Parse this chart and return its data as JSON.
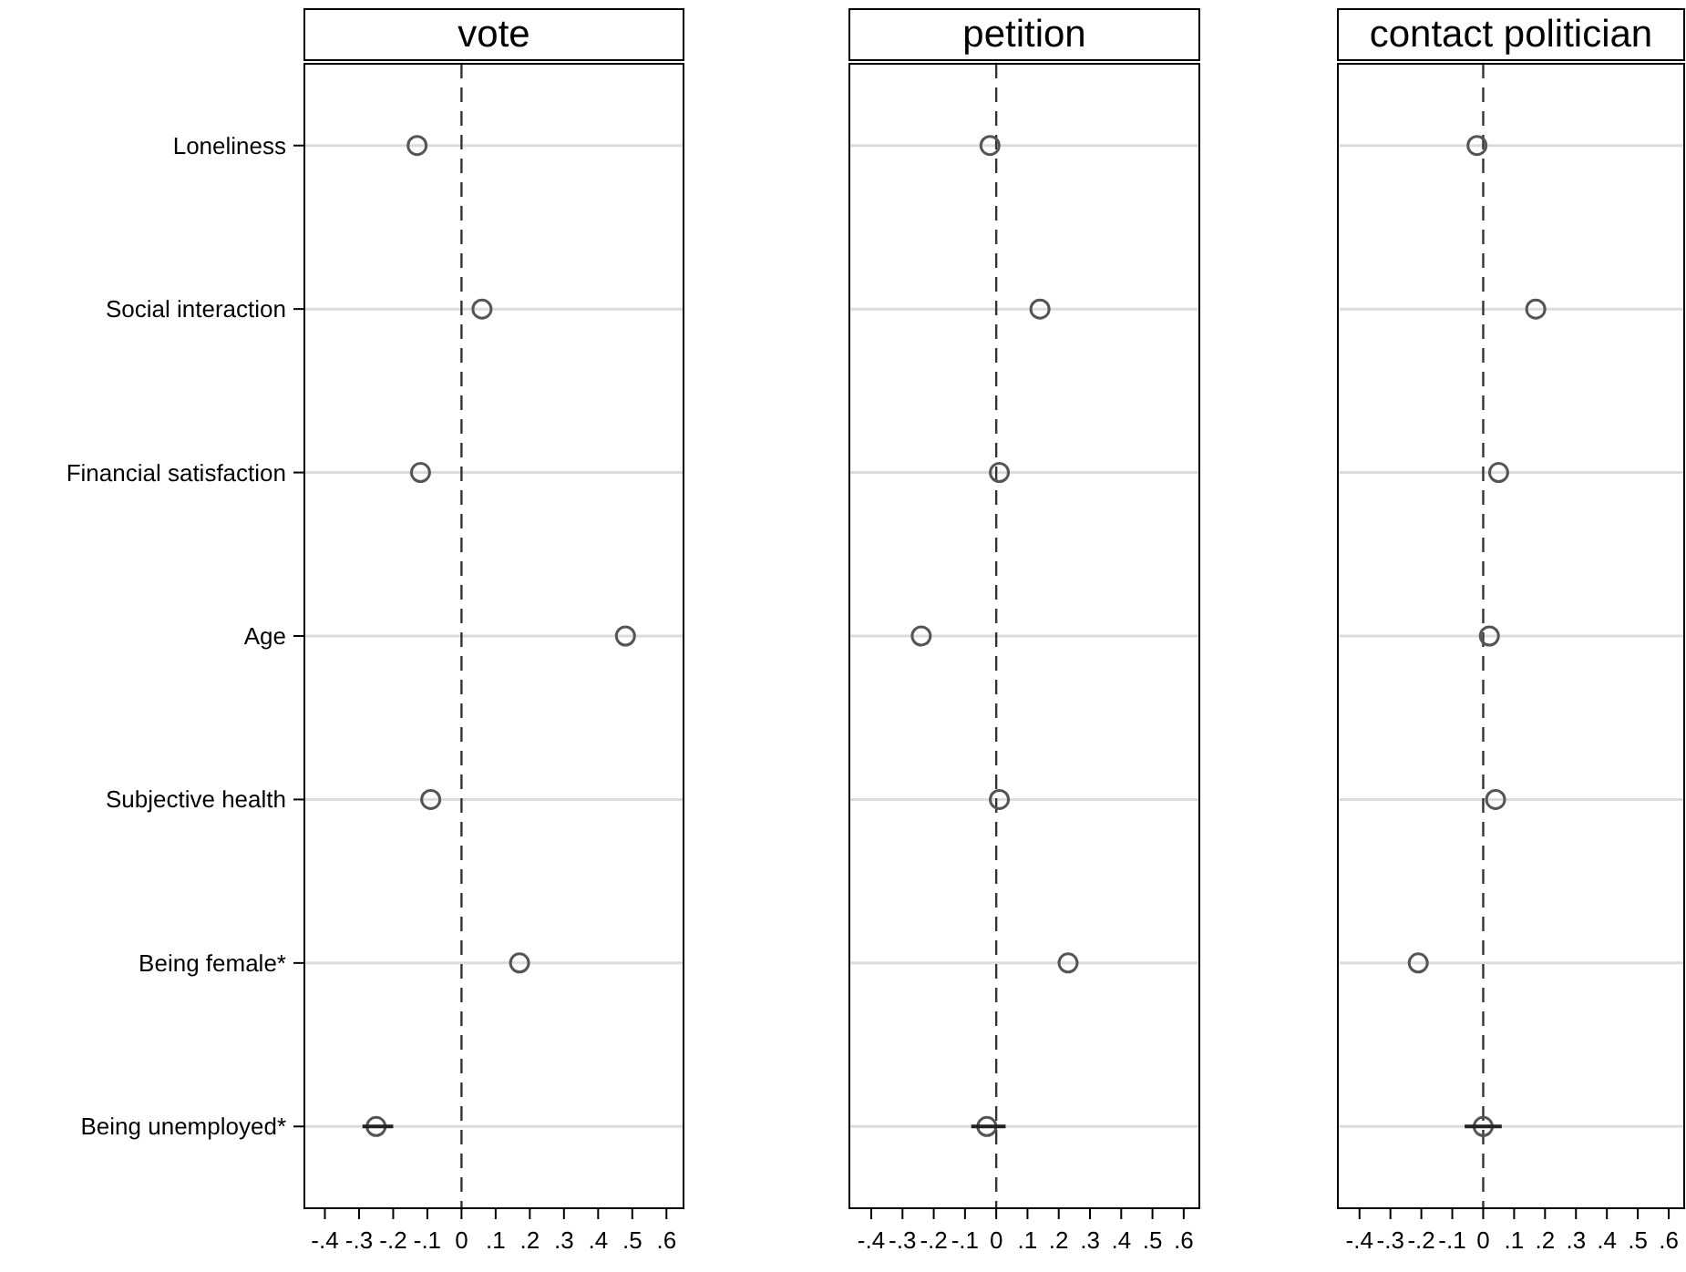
{
  "chart_data": [
    {
      "type": "scatter",
      "orientation": "horizontal",
      "title": "vote",
      "categories": [
        "Loneliness",
        "Social interaction",
        "Financial satisfaction",
        "Age",
        "Subjective health",
        "Being female*",
        "Being unemployed*"
      ],
      "values": [
        -0.13,
        0.06,
        -0.12,
        0.48,
        -0.09,
        0.17,
        -0.25
      ],
      "errors": [
        null,
        null,
        null,
        null,
        null,
        null,
        [
          -0.29,
          -0.2
        ]
      ],
      "color": "#555555",
      "marker": "circle",
      "grid": "y",
      "xlim": [
        -0.46,
        0.65
      ],
      "xticks": [
        {
          "value": -0.4,
          "label": "-.4"
        },
        {
          "value": -0.3,
          "label": "-.3"
        },
        {
          "value": -0.2,
          "label": "-.2"
        },
        {
          "value": -0.1,
          "label": "-.1"
        },
        {
          "value": 0,
          "label": "0"
        },
        {
          "value": 0.1,
          "label": ".1"
        },
        {
          "value": 0.2,
          "label": ".2"
        },
        {
          "value": 0.3,
          "label": ".3"
        },
        {
          "value": 0.4,
          "label": ".4"
        },
        {
          "value": 0.5,
          "label": ".5"
        },
        {
          "value": 0.6,
          "label": ".6"
        }
      ],
      "ref_lines": [
        {
          "axis": "x",
          "value": 0,
          "line_style": "dashed"
        }
      ]
    },
    {
      "type": "scatter",
      "orientation": "horizontal",
      "title": "petition",
      "categories": [
        null,
        null,
        null,
        null,
        null,
        null,
        null
      ],
      "values": [
        -0.02,
        0.14,
        0.01,
        -0.24,
        0.01,
        0.23,
        -0.03
      ],
      "errors": [
        null,
        null,
        null,
        null,
        null,
        null,
        [
          -0.08,
          0.03
        ]
      ],
      "color": "#555555",
      "marker": "circle",
      "grid": "y",
      "tick_labels": "x",
      "xlim": [
        -0.47,
        0.65
      ],
      "xticks": [
        {
          "value": -0.4,
          "label": "-.4"
        },
        {
          "value": -0.3,
          "label": "-.3"
        },
        {
          "value": -0.2,
          "label": "-.2"
        },
        {
          "value": -0.1,
          "label": "-.1"
        },
        {
          "value": 0,
          "label": "0"
        },
        {
          "value": 0.1,
          "label": ".1"
        },
        {
          "value": 0.2,
          "label": ".2"
        },
        {
          "value": 0.3,
          "label": ".3"
        },
        {
          "value": 0.4,
          "label": ".4"
        },
        {
          "value": 0.5,
          "label": ".5"
        },
        {
          "value": 0.6,
          "label": ".6"
        }
      ],
      "ref_lines": [
        {
          "axis": "x",
          "value": 0,
          "line_style": "dashed"
        }
      ]
    },
    {
      "type": "scatter",
      "orientation": "horizontal",
      "title": "contact politician",
      "categories": [
        null,
        null,
        null,
        null,
        null,
        null,
        null
      ],
      "values": [
        -0.02,
        0.17,
        0.05,
        0.02,
        0.04,
        -0.21,
        0.0
      ],
      "errors": [
        null,
        null,
        null,
        null,
        null,
        null,
        [
          -0.06,
          0.06
        ]
      ],
      "color": "#555555",
      "marker": "circle",
      "grid": "y",
      "tick_labels": "x",
      "xlim": [
        -0.47,
        0.65
      ],
      "xticks": [
        {
          "value": -0.4,
          "label": "-.4"
        },
        {
          "value": -0.3,
          "label": "-.3"
        },
        {
          "value": -0.2,
          "label": "-.2"
        },
        {
          "value": -0.1,
          "label": "-.1"
        },
        {
          "value": 0,
          "label": "0"
        },
        {
          "value": 0.1,
          "label": ".1"
        },
        {
          "value": 0.2,
          "label": ".2"
        },
        {
          "value": 0.3,
          "label": ".3"
        },
        {
          "value": 0.4,
          "label": ".4"
        },
        {
          "value": 0.5,
          "label": ".5"
        },
        {
          "value": 0.6,
          "label": ".6"
        }
      ],
      "ref_lines": [
        {
          "axis": "x",
          "value": 0,
          "line_style": "dashed"
        }
      ]
    }
  ]
}
